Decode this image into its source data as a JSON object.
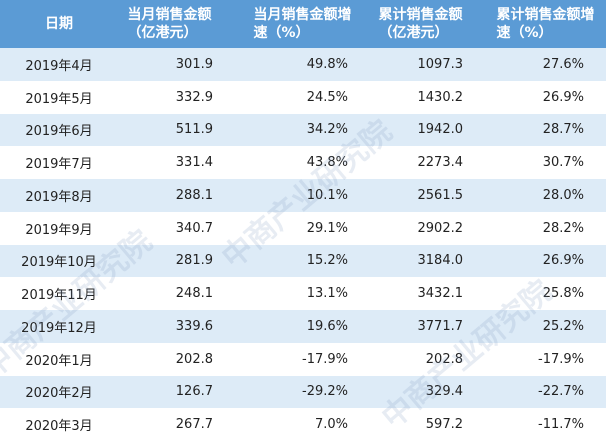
{
  "table": {
    "header": [
      "日期",
      "当月销售金额（亿港元）",
      "当月销售金额增速（%）",
      "累计销售金额（亿港元）",
      "累计销售金额增速（%）"
    ],
    "rows": [
      [
        "2019年4月",
        "301.9",
        "49.8%",
        "1097.3",
        "27.6%"
      ],
      [
        "2019年5月",
        "332.9",
        "24.5%",
        "1430.2",
        "26.9%"
      ],
      [
        "2019年6月",
        "511.9",
        "34.2%",
        "1942.0",
        "28.7%"
      ],
      [
        "2019年7月",
        "331.4",
        "43.8%",
        "2273.4",
        "30.7%"
      ],
      [
        "2019年8月",
        "288.1",
        "10.1%",
        "2561.5",
        "28.0%"
      ],
      [
        "2019年9月",
        "340.7",
        "29.1%",
        "2902.2",
        "28.2%"
      ],
      [
        "2019年10月",
        "281.9",
        "15.2%",
        "3184.0",
        "26.9%"
      ],
      [
        "2019年11月",
        "248.1",
        "13.1%",
        "3432.1",
        "25.8%"
      ],
      [
        "2019年12月",
        "339.6",
        "19.6%",
        "3771.7",
        "25.2%"
      ],
      [
        "2020年1月",
        "202.8",
        "-17.9%",
        "202.8",
        "-17.9%"
      ],
      [
        "2020年2月",
        "126.7",
        "-29.2%",
        "329.4",
        "-22.7%"
      ],
      [
        "2020年3月",
        "267.7",
        "7.0%",
        "597.2",
        "-11.7%"
      ]
    ]
  },
  "watermark": "中商产业研究院"
}
